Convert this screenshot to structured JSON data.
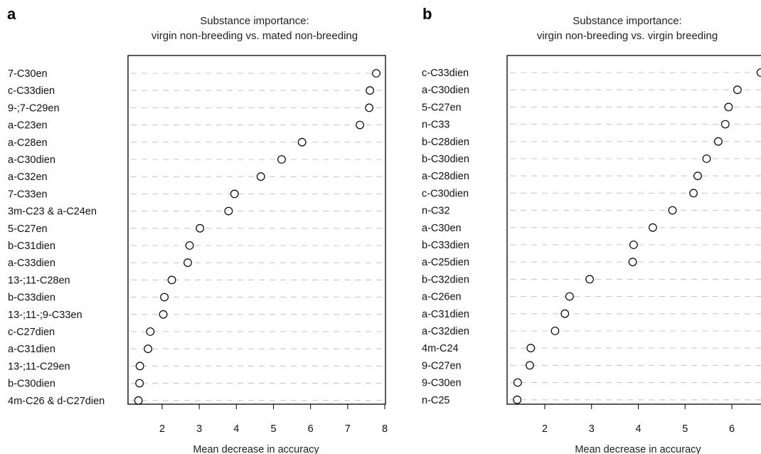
{
  "chart_data": [
    {
      "type": "scatter",
      "panel_label": "a",
      "title": "Substance importance:",
      "subtitle": "virgin non-breeding vs. mated non-breeding",
      "xlabel": "Mean decrease in accuracy",
      "ylabel": "",
      "xlim": [
        1.1,
        8.1
      ],
      "xticks": [
        2,
        3,
        4,
        5,
        6,
        7,
        8
      ],
      "grid": "horizontal dashed guides",
      "categories": [
        "7-C30en",
        "c-C33dien",
        "9-;7-C29en",
        "a-C23en",
        "a-C28en",
        "a-C30dien",
        "a-C32en",
        "7-C33en",
        "3m-C23 & a-C24en",
        "5-C27en",
        "b-C31dien",
        "a-C33dien",
        "13-;11-C28en",
        "b-C33dien",
        "13-;11-;9-C33en",
        "c-C27dien",
        "a-C31dien",
        "13-;11-C29en",
        "b-C30dien",
        "4m-C26 & d-C27dien"
      ],
      "values": [
        7.77,
        7.6,
        7.58,
        7.33,
        5.77,
        5.22,
        4.66,
        3.95,
        3.79,
        3.02,
        2.74,
        2.69,
        2.26,
        2.06,
        2.03,
        1.68,
        1.62,
        1.4,
        1.39,
        1.36
      ]
    },
    {
      "type": "scatter",
      "panel_label": "b",
      "title": "Substance importance:",
      "subtitle": "virgin non-breeding vs. virgin breeding",
      "xlabel": "Mean decrease in accuracy",
      "ylabel": "",
      "xlim": [
        1.2,
        6.7
      ],
      "xticks": [
        2,
        3,
        4,
        5,
        6
      ],
      "grid": "horizontal dashed guides",
      "categories": [
        "c-C33dien",
        "a-C30dien",
        "5-C27en",
        "n-C33",
        "b-C28dien",
        "b-C30dien",
        "a-C28dien",
        "c-C30dien",
        "n-C32",
        "a-C30en",
        "b-C33dien",
        "a-C25dien",
        "b-C32dien",
        "a-C26en",
        "a-C31dien",
        "a-C32dien",
        "4m-C24",
        "9-C27en",
        "9-C30en",
        "n-C25"
      ],
      "values": [
        6.62,
        6.12,
        5.93,
        5.86,
        5.71,
        5.46,
        5.27,
        5.18,
        4.73,
        4.31,
        3.9,
        3.88,
        2.96,
        2.53,
        2.43,
        2.22,
        1.7,
        1.68,
        1.42,
        1.41
      ]
    }
  ]
}
